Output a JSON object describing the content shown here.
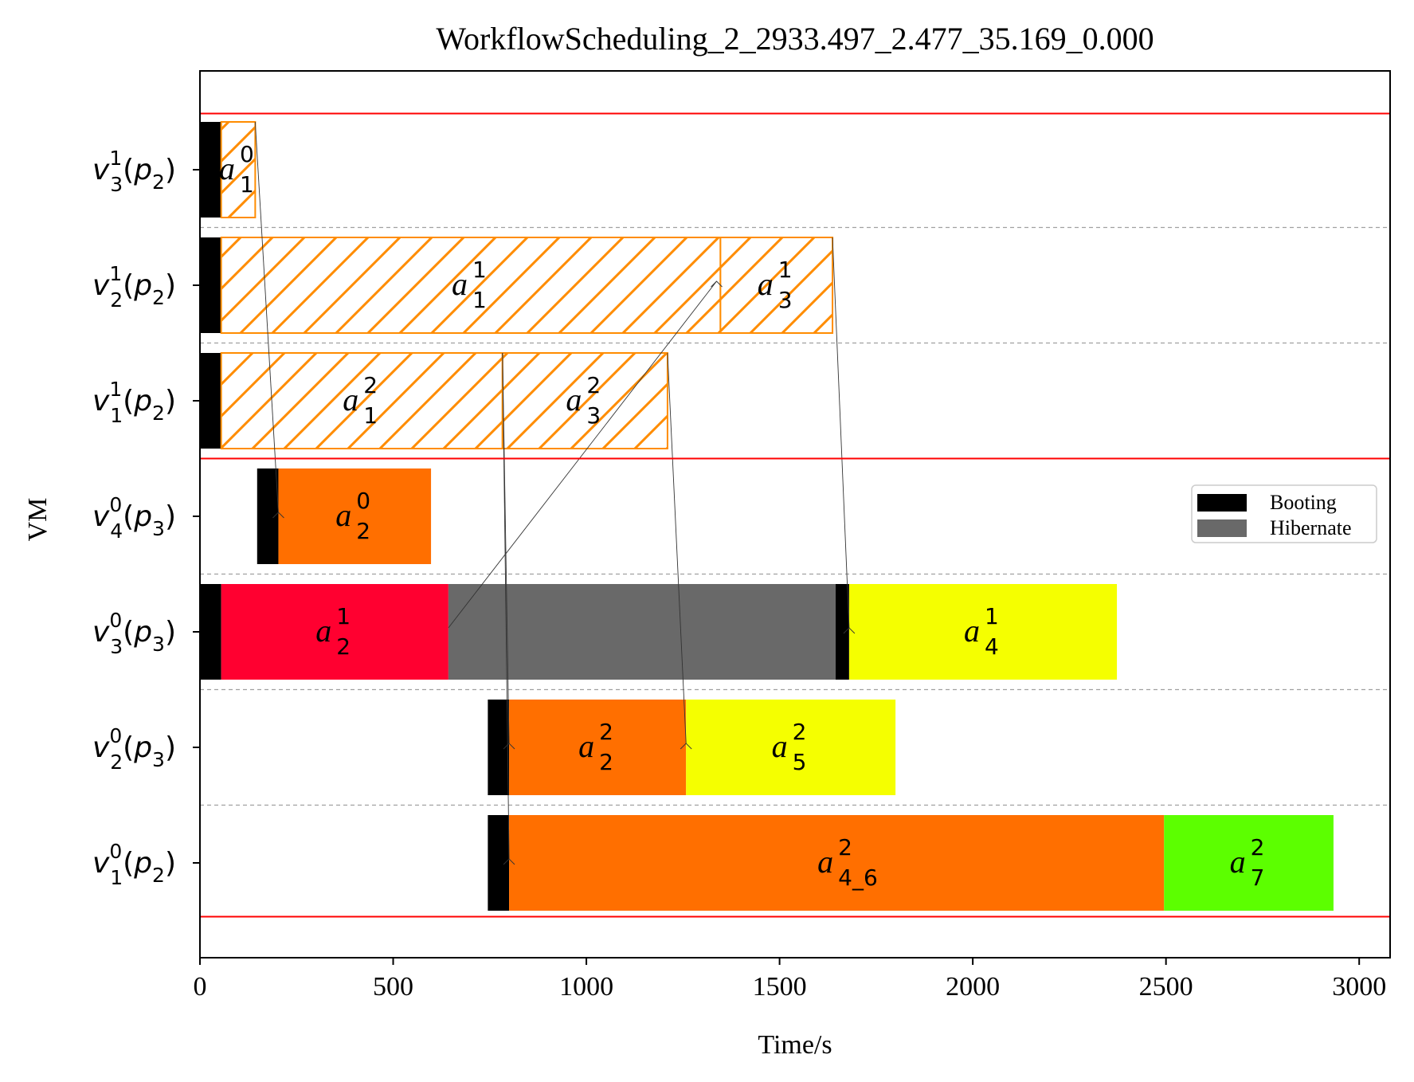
{
  "chart_data": {
    "type": "gantt",
    "title": "WorkflowScheduling_2_2933.497_2.477_35.169_0.000",
    "xlabel": "Time/s",
    "ylabel": "VM",
    "xlim": [
      0,
      3080
    ],
    "xticks": [
      0,
      500,
      1000,
      1500,
      2000,
      2500,
      3000
    ],
    "legend": {
      "placement": "right",
      "entries": [
        {
          "label": "Booting",
          "color": "#000000"
        },
        {
          "label": "Hibernate",
          "color": "#696969"
        }
      ]
    },
    "rows": [
      {
        "id": "v31p2",
        "vm": "v",
        "vm_sup": "1",
        "vm_sub": "3",
        "p": "p",
        "p_sub": "2"
      },
      {
        "id": "v21p2",
        "vm": "v",
        "vm_sup": "1",
        "vm_sub": "2",
        "p": "p",
        "p_sub": "2"
      },
      {
        "id": "v11p2",
        "vm": "v",
        "vm_sup": "1",
        "vm_sub": "1",
        "p": "p",
        "p_sub": "2"
      },
      {
        "id": "v40p3",
        "vm": "v",
        "vm_sup": "0",
        "vm_sub": "4",
        "p": "p",
        "p_sub": "3"
      },
      {
        "id": "v30p3",
        "vm": "v",
        "vm_sup": "0",
        "vm_sub": "3",
        "p": "p",
        "p_sub": "3"
      },
      {
        "id": "v20p3",
        "vm": "v",
        "vm_sup": "0",
        "vm_sub": "2",
        "p": "p",
        "p_sub": "3"
      },
      {
        "id": "v10p2",
        "vm": "v",
        "vm_sup": "0",
        "vm_sub": "1",
        "p": "p",
        "p_sub": "2"
      }
    ],
    "group_separators_after_row": [
      -1,
      2,
      6
    ],
    "segments": [
      {
        "row": 0,
        "kind": "boot",
        "start": 0,
        "end": 55
      },
      {
        "row": 0,
        "kind": "task",
        "start": 55,
        "end": 143,
        "color": "#FF8C00",
        "hatched": true,
        "label": "a",
        "sup": "0",
        "sub": "1"
      },
      {
        "row": 1,
        "kind": "boot",
        "start": 0,
        "end": 55
      },
      {
        "row": 1,
        "kind": "task",
        "start": 55,
        "end": 1347,
        "color": "#FF8C00",
        "hatched": true,
        "label": "a",
        "sup": "1",
        "sub": "1"
      },
      {
        "row": 1,
        "kind": "task",
        "start": 1347,
        "end": 1637,
        "color": "#FF8C00",
        "hatched": true,
        "label": "a",
        "sup": "1",
        "sub": "3"
      },
      {
        "row": 2,
        "kind": "boot",
        "start": 0,
        "end": 55
      },
      {
        "row": 2,
        "kind": "task",
        "start": 55,
        "end": 783,
        "color": "#FF8C00",
        "hatched": true,
        "label": "a",
        "sup": "2",
        "sub": "1"
      },
      {
        "row": 2,
        "kind": "task",
        "start": 783,
        "end": 1210,
        "color": "#FF8C00",
        "hatched": true,
        "label": "a",
        "sup": "2",
        "sub": "3"
      },
      {
        "row": 3,
        "kind": "boot",
        "start": 148,
        "end": 203
      },
      {
        "row": 3,
        "kind": "task",
        "start": 203,
        "end": 598,
        "color": "#FF6F00",
        "hatched": false,
        "label": "a",
        "sup": "0",
        "sub": "2"
      },
      {
        "row": 4,
        "kind": "boot",
        "start": 0,
        "end": 55
      },
      {
        "row": 4,
        "kind": "task",
        "start": 55,
        "end": 643,
        "color": "#FF0030",
        "hatched": false,
        "label": "a",
        "sup": "1",
        "sub": "2"
      },
      {
        "row": 4,
        "kind": "hibernate",
        "start": 643,
        "end": 1645
      },
      {
        "row": 4,
        "kind": "boot",
        "start": 1645,
        "end": 1680
      },
      {
        "row": 4,
        "kind": "task",
        "start": 1680,
        "end": 2373,
        "color": "#F5FF00",
        "hatched": false,
        "label": "a",
        "sup": "1",
        "sub": "4"
      },
      {
        "row": 5,
        "kind": "boot",
        "start": 745,
        "end": 800
      },
      {
        "row": 5,
        "kind": "task",
        "start": 800,
        "end": 1258,
        "color": "#FF6F00",
        "hatched": false,
        "label": "a",
        "sup": "2",
        "sub": "2"
      },
      {
        "row": 5,
        "kind": "task",
        "start": 1258,
        "end": 1800,
        "color": "#F5FF00",
        "hatched": false,
        "label": "a",
        "sup": "2",
        "sub": "5"
      },
      {
        "row": 6,
        "kind": "boot",
        "start": 745,
        "end": 800
      },
      {
        "row": 6,
        "kind": "task",
        "start": 800,
        "end": 2495,
        "color": "#FF6F00",
        "hatched": false,
        "label": "a",
        "sup": "2",
        "sub": "4_6"
      },
      {
        "row": 6,
        "kind": "task",
        "start": 2495,
        "end": 2933.497,
        "color": "#5CFF00",
        "hatched": false,
        "label": "a",
        "sup": "2",
        "sub": "7"
      }
    ],
    "dependencies": [
      {
        "from": {
          "row": 0,
          "t": 143
        },
        "to": {
          "row": 3,
          "t": 203
        }
      },
      {
        "from": {
          "row": 4,
          "t": 643
        },
        "to": {
          "row": 1,
          "t": 1337
        }
      },
      {
        "from": {
          "row": 1,
          "t": 1637
        },
        "to": {
          "row": 4,
          "t": 1680
        }
      },
      {
        "from": {
          "row": 2,
          "t": 783
        },
        "to": {
          "row": 5,
          "t": 800
        }
      },
      {
        "from": {
          "row": 2,
          "t": 783
        },
        "to": {
          "row": 6,
          "t": 800
        }
      },
      {
        "from": {
          "row": 2,
          "t": 1210
        },
        "to": {
          "row": 5,
          "t": 1258
        }
      }
    ]
  }
}
